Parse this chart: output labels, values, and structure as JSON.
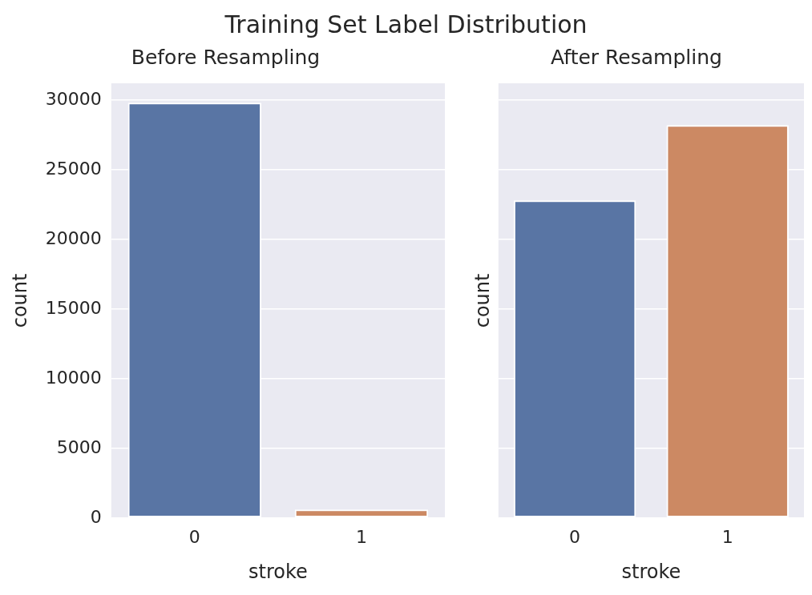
{
  "chart_data": [
    {
      "type": "bar",
      "title": "Training Set Label Distribution",
      "subtitle": "Before Resampling",
      "categories": [
        "0",
        "1"
      ],
      "values": [
        29800,
        600
      ],
      "colors": [
        "#5975a4",
        "#cc8963"
      ],
      "xlabel": "stroke",
      "ylabel": "count",
      "ylim": [
        0,
        31200
      ],
      "yticks": [
        0,
        5000,
        10000,
        15000,
        20000,
        25000,
        30000
      ],
      "grid": "y",
      "legend": false
    },
    {
      "type": "bar",
      "subtitle": "After Resampling",
      "categories": [
        "0",
        "1"
      ],
      "values": [
        22800,
        28200
      ],
      "colors": [
        "#5975a4",
        "#cc8963"
      ],
      "xlabel": "stroke",
      "ylabel": "count",
      "ylim": [
        0,
        31200
      ],
      "yticks": [
        0,
        5000,
        10000,
        15000,
        20000,
        25000,
        30000
      ],
      "grid": "y",
      "legend": false,
      "tick_labels": "x"
    }
  ]
}
